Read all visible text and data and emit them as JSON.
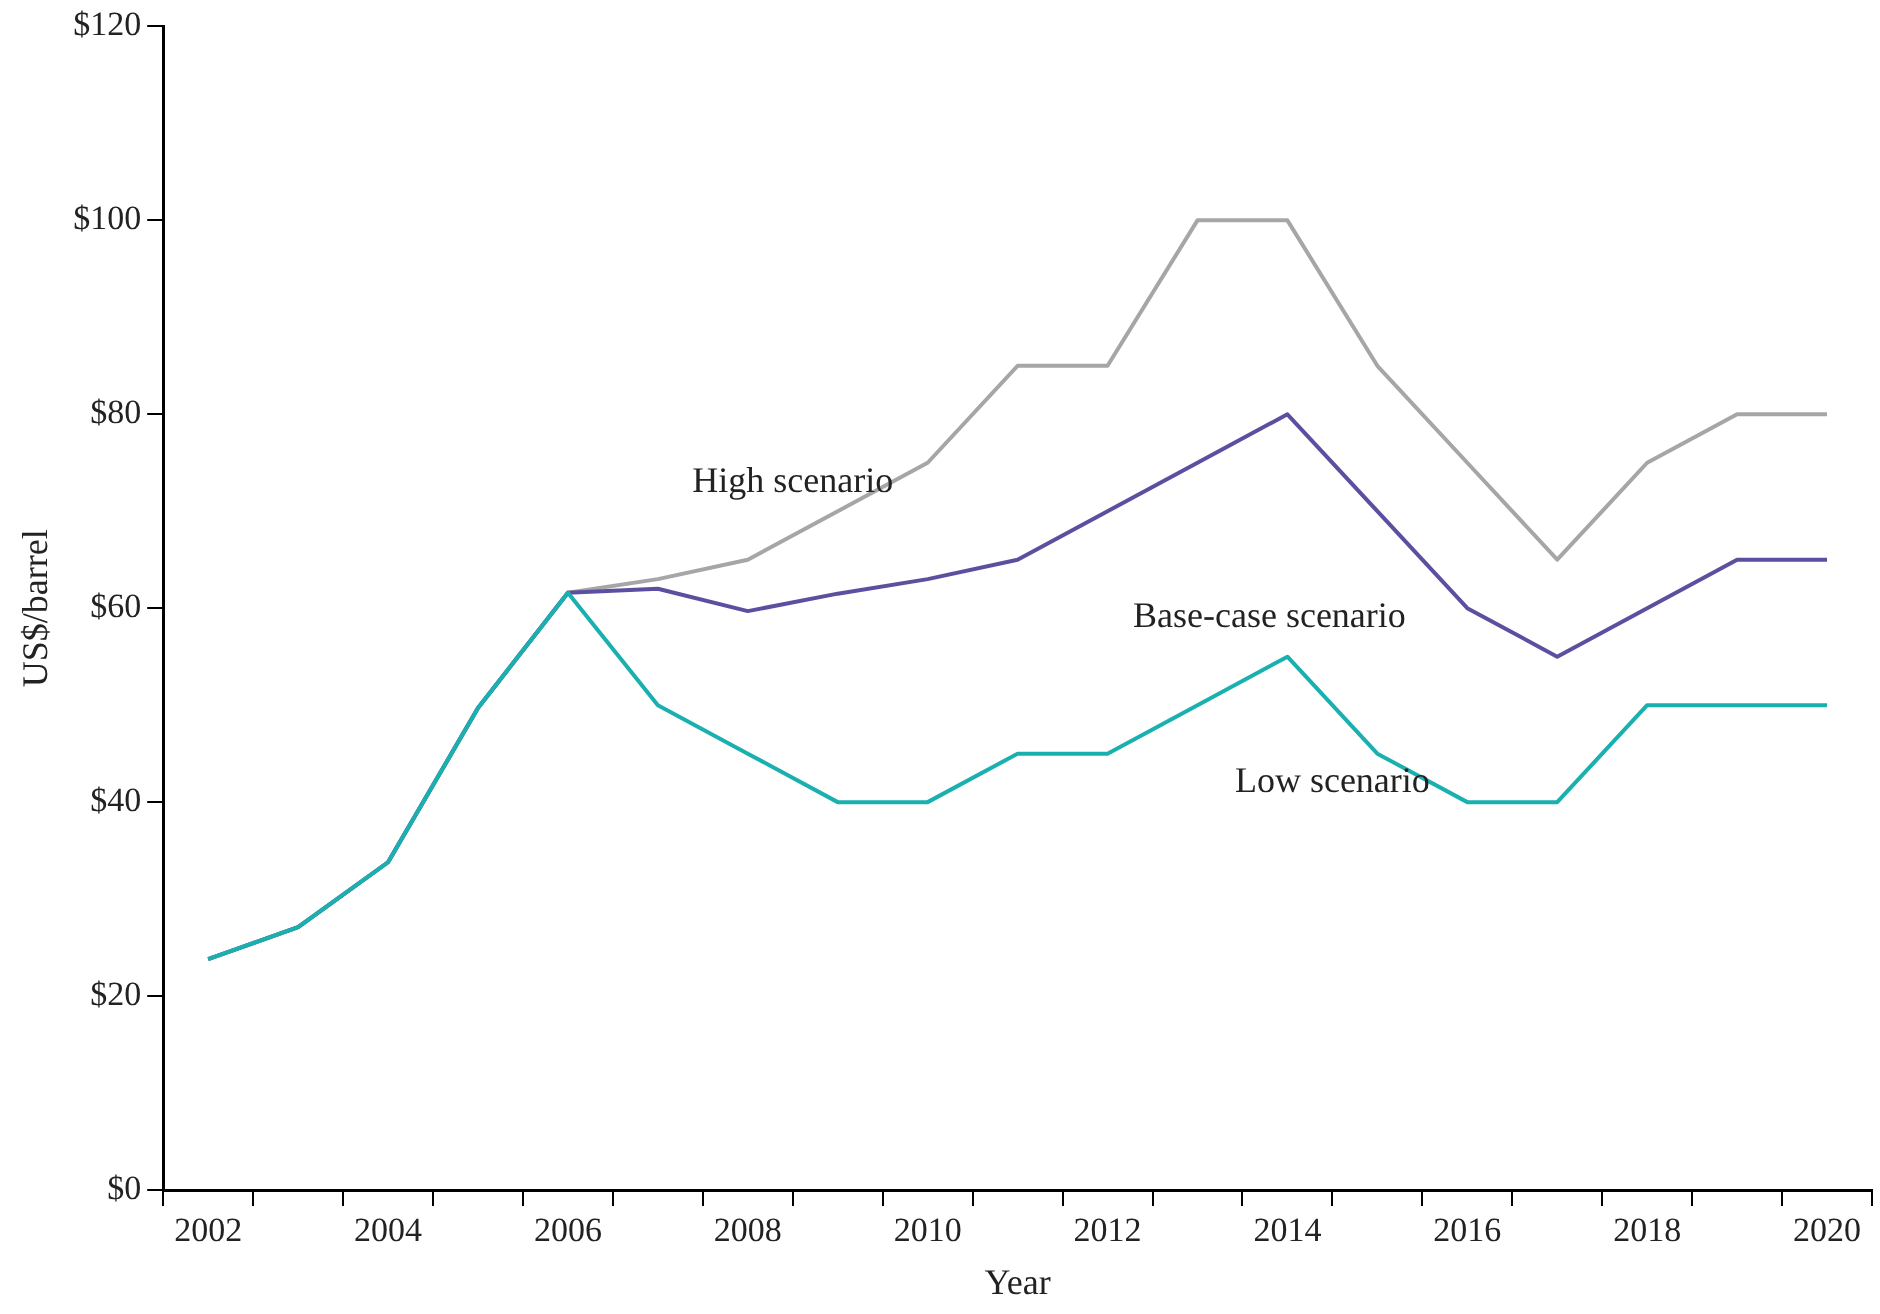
{
  "chart_data": {
    "type": "line",
    "xlabel": "Year",
    "ylabel": "US$/barrel",
    "categories": [
      "2002",
      null,
      "2004",
      null,
      "2006",
      null,
      "2008",
      null,
      "2010",
      null,
      "2012",
      null,
      "2014",
      null,
      "2016",
      null,
      "2018",
      null,
      "2020"
    ],
    "series": [
      {
        "name": "High scenario",
        "color": "#a6a6a6",
        "values": [
          23.8,
          27.1,
          33.8,
          49.7,
          61.6,
          63,
          65,
          70,
          75,
          85,
          85,
          100,
          100,
          85,
          75,
          65,
          75,
          80,
          80
        ]
      },
      {
        "name": "Base-case scenario",
        "color": "#5b4fa0",
        "values": [
          23.8,
          27.1,
          33.8,
          49.7,
          61.6,
          62,
          59.7,
          61.5,
          63,
          65,
          70,
          75,
          80,
          70,
          60,
          55,
          60,
          65,
          65
        ]
      },
      {
        "name": "Low scenario",
        "color": "#1ab0b0",
        "values": [
          23.8,
          27.1,
          33.8,
          49.7,
          61.6,
          50,
          45,
          40,
          40,
          45,
          45,
          50,
          55,
          45,
          40,
          40,
          50,
          50,
          50
        ]
      }
    ],
    "ylim": [
      0,
      120
    ],
    "yticks": [
      {
        "value": 0,
        "label": "$0"
      },
      {
        "value": 20,
        "label": "$20"
      },
      {
        "value": 40,
        "label": "$40"
      },
      {
        "value": 60,
        "label": "$60"
      },
      {
        "value": 80,
        "label": "$80"
      },
      {
        "value": 100,
        "label": "$100"
      },
      {
        "value": 120,
        "label": "$120"
      }
    ],
    "grid": false,
    "legend": false,
    "marker": "none",
    "line_style": "solid"
  }
}
